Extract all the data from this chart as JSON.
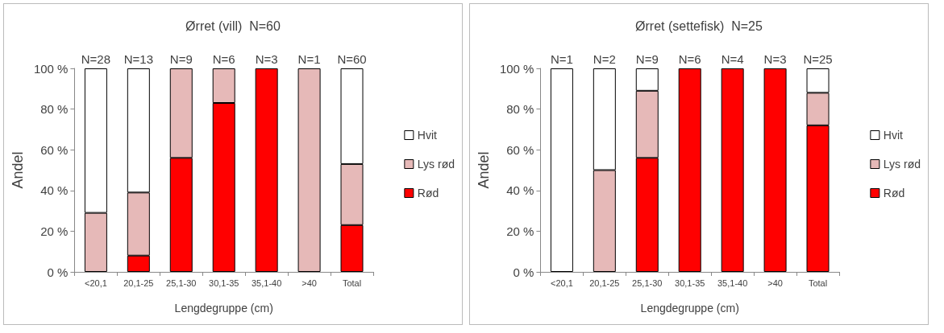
{
  "chart_data": [
    {
      "type": "bar",
      "title": "Ørret (vill)  N=60",
      "xlabel": "Lengdegruppe (cm)",
      "ylabel": "Andel",
      "stacked": true,
      "legend": "right",
      "grid": false,
      "categories": [
        "<20,1",
        "20,1-25",
        "25,1-30",
        "30,1-35",
        "35,1-40",
        ">40",
        "Total"
      ],
      "ylim": [
        0,
        100
      ],
      "yticks": [
        {
          "value": 0,
          "label": "0 %"
        },
        {
          "value": 20,
          "label": "20 %"
        },
        {
          "value": 40,
          "label": "40 %"
        },
        {
          "value": 60,
          "label": "60 %"
        },
        {
          "value": 80,
          "label": "80 %"
        },
        {
          "value": 100,
          "label": "100 %"
        }
      ],
      "series": [
        {
          "name": "Rød",
          "color": "#ff0000",
          "values": [
            0,
            8,
            56,
            83,
            100,
            0,
            23
          ]
        },
        {
          "name": "Lys rød",
          "color": "#e6b9b8",
          "values": [
            29,
            31,
            44,
            17,
            0,
            100,
            30
          ]
        },
        {
          "name": "Hvit",
          "color": "#ffffff",
          "values": [
            71,
            61,
            0,
            0,
            0,
            0,
            47
          ]
        }
      ],
      "annotations": [
        {
          "text": "N=28",
          "x": "<20,1",
          "y": 100
        },
        {
          "text": "N=13",
          "x": "20,1-25",
          "y": 100
        },
        {
          "text": "N=9",
          "x": "25,1-30",
          "y": 100
        },
        {
          "text": "N=6",
          "x": "30,1-35",
          "y": 100
        },
        {
          "text": "N=3",
          "x": "35,1-40",
          "y": 100
        },
        {
          "text": "N=1",
          "x": ">40",
          "y": 100
        },
        {
          "text": "N=60",
          "x": "Total",
          "y": 100
        }
      ]
    },
    {
      "type": "bar",
      "title": "Ørret (settefisk)  N=25",
      "xlabel": "Lengdegruppe (cm)",
      "ylabel": "Andel",
      "stacked": true,
      "legend": "right",
      "grid": false,
      "categories": [
        "<20,1",
        "20,1-25",
        "25,1-30",
        "30,1-35",
        "35,1-40",
        ">40",
        "Total"
      ],
      "ylim": [
        0,
        100
      ],
      "yticks": [
        {
          "value": 0,
          "label": "0 %"
        },
        {
          "value": 20,
          "label": "20 %"
        },
        {
          "value": 40,
          "label": "40 %"
        },
        {
          "value": 60,
          "label": "60 %"
        },
        {
          "value": 80,
          "label": "80 %"
        },
        {
          "value": 100,
          "label": "100 %"
        }
      ],
      "series": [
        {
          "name": "Rød",
          "color": "#ff0000",
          "values": [
            0,
            0,
            56,
            100,
            100,
            100,
            72
          ]
        },
        {
          "name": "Lys rød",
          "color": "#e6b9b8",
          "values": [
            0,
            50,
            33,
            0,
            0,
            0,
            16
          ]
        },
        {
          "name": "Hvit",
          "color": "#ffffff",
          "values": [
            100,
            50,
            11,
            0,
            0,
            0,
            12
          ]
        }
      ],
      "annotations": [
        {
          "text": "N=1",
          "x": "<20,1",
          "y": 100
        },
        {
          "text": "N=2",
          "x": "20,1-25",
          "y": 100
        },
        {
          "text": "N=9",
          "x": "25,1-30",
          "y": 100
        },
        {
          "text": "N=6",
          "x": "30,1-35",
          "y": 100
        },
        {
          "text": "N=4",
          "x": "35,1-40",
          "y": 100
        },
        {
          "text": "N=3",
          "x": ">40",
          "y": 100
        },
        {
          "text": "N=25",
          "x": "Total",
          "y": 100
        }
      ]
    }
  ]
}
